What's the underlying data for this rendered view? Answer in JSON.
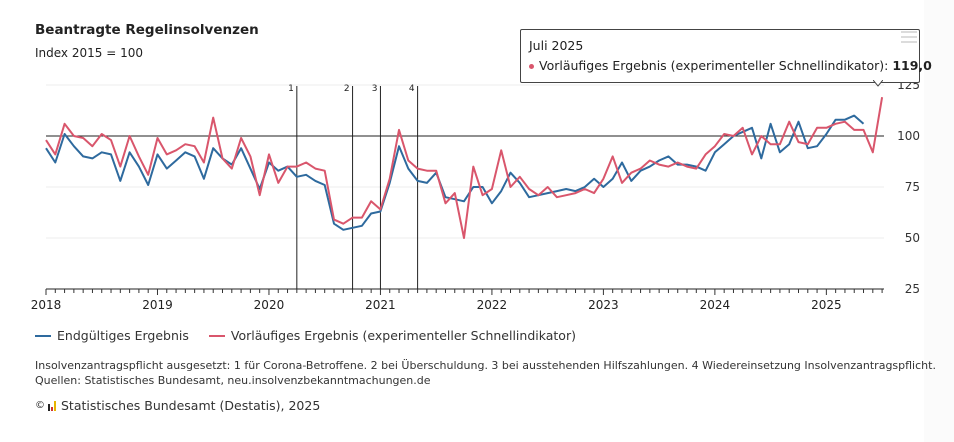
{
  "title": "Beantragte Regelinsolvenzen",
  "subtitle": "Index 2015 = 100",
  "tooltip": {
    "period": "Juli 2025",
    "series_label": "Vorläufiges Ergebnis (experimenteller Schnellindikator):",
    "value": "119,0",
    "color": "#D9566C"
  },
  "legend": [
    {
      "label": "Endgültiges Ergebnis",
      "color": "#2E6A9E"
    },
    {
      "label": "Vorläufiges Ergebnis (experimenteller Schnellindikator)",
      "color": "#D9566C"
    }
  ],
  "note": "Insolvenzantragspflicht ausgesetzt: 1 für Corona-Betroffene. 2 bei Überschuldung. 3 bei ausstehenden Hilfszahlungen. 4 Wiedereinsetzung Insolvenzantragspflicht.",
  "source": "Quellen: Statistisches Bundesamt, neu.insolvenzbekanntmachungen.de",
  "copyright_symbol": "©",
  "copyright": "Statistisches Bundesamt (Destatis), 2025",
  "chart_data": {
    "type": "line",
    "title": "Beantragte Regelinsolvenzen",
    "subtitle": "Index 2015 = 100",
    "xlabel": "",
    "ylabel": "",
    "x_start": "2018-01",
    "x_frequency": "monthly",
    "x_ticks": [
      "2018",
      "2019",
      "2020",
      "2021",
      "2022",
      "2023",
      "2024",
      "2025"
    ],
    "y_ticks": [
      25,
      50,
      75,
      100,
      125
    ],
    "ylim": [
      25,
      125
    ],
    "reference_line": 100,
    "grid": true,
    "legend_position": "bottom-left",
    "annotations": [
      {
        "label": "1",
        "date": "2020-04"
      },
      {
        "label": "2",
        "date": "2020-10"
      },
      {
        "label": "3",
        "date": "2021-01"
      },
      {
        "label": "4",
        "date": "2021-05"
      }
    ],
    "series": [
      {
        "name": "Endgültiges Ergebnis",
        "color": "#2E6A9E",
        "values": [
          94,
          87,
          101,
          95,
          90,
          89,
          92,
          91,
          78,
          92,
          85,
          76,
          91,
          84,
          88,
          92,
          90,
          79,
          94,
          89,
          86,
          94,
          84,
          74,
          87,
          83,
          85,
          80,
          81,
          78,
          76,
          57,
          54,
          55,
          56,
          62,
          63,
          77,
          95,
          84,
          78,
          77,
          82,
          70,
          69,
          68,
          75,
          75,
          67,
          73,
          82,
          77,
          70,
          71,
          72,
          73,
          74,
          73,
          75,
          79,
          75,
          79,
          87,
          78,
          83,
          85,
          88,
          90,
          86,
          86,
          85,
          83,
          92,
          96,
          100,
          102,
          104,
          89,
          106,
          92,
          96,
          107,
          94,
          95,
          101,
          108,
          108,
          110,
          106
        ]
      },
      {
        "name": "Vorläufiges Ergebnis (experimenteller Schnellindikator)",
        "color": "#D9566C",
        "values": [
          98,
          91,
          106,
          100,
          99,
          95,
          101,
          98,
          85,
          100,
          90,
          81,
          99,
          91,
          93,
          96,
          95,
          87,
          109,
          89,
          84,
          99,
          90,
          71,
          91,
          77,
          85,
          85,
          87,
          84,
          83,
          59,
          57,
          60,
          60,
          68,
          64,
          79,
          103,
          88,
          84,
          83,
          83,
          67,
          72,
          50,
          85,
          71,
          74,
          93,
          75,
          80,
          74,
          71,
          75,
          70,
          71,
          72,
          74,
          72,
          79,
          90,
          77,
          82,
          84,
          88,
          86,
          85,
          87,
          85,
          84,
          91,
          95,
          101,
          100,
          104,
          91,
          100,
          96,
          96,
          107,
          97,
          96,
          104,
          104,
          106,
          107,
          103,
          103,
          92,
          119
        ]
      }
    ]
  }
}
